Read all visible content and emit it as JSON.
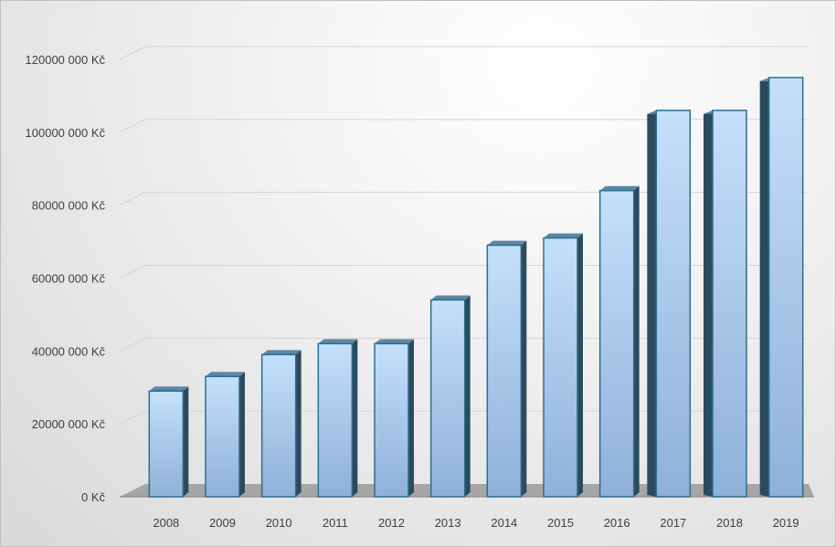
{
  "chart_data": {
    "type": "bar",
    "title": "",
    "xlabel": "",
    "ylabel": "",
    "categories": [
      "2008",
      "2009",
      "2010",
      "2011",
      "2012",
      "2013",
      "2014",
      "2015",
      "2016",
      "2017",
      "2018",
      "2019"
    ],
    "values": [
      29000000,
      33000000,
      39000000,
      42000000,
      42000000,
      54000000,
      69000000,
      71000000,
      84000000,
      106000000,
      106000000,
      115000000
    ],
    "ylim": [
      0,
      120000000
    ],
    "yticks": [
      0,
      20000000,
      40000000,
      60000000,
      80000000,
      100000000,
      120000000
    ],
    "ytick_labels": [
      "0 Kč",
      "20000 000 Kč",
      "40000 000 Kč",
      "60000 000 Kč",
      "80000 000 Kč",
      "100000 000 Kč",
      "120000 000 Kč"
    ],
    "grid": true,
    "legend": false,
    "style": "3d-column",
    "colors": {
      "bar_front_top": "#c4e0fb",
      "bar_front_bottom": "#8fb1d8",
      "bar_side": "#2c4a5e",
      "bar_top": "#5d87a5",
      "bar_outline": "#2b6e8f",
      "gridline": "#d4d4d4",
      "floor": "#a6a6a6"
    }
  }
}
